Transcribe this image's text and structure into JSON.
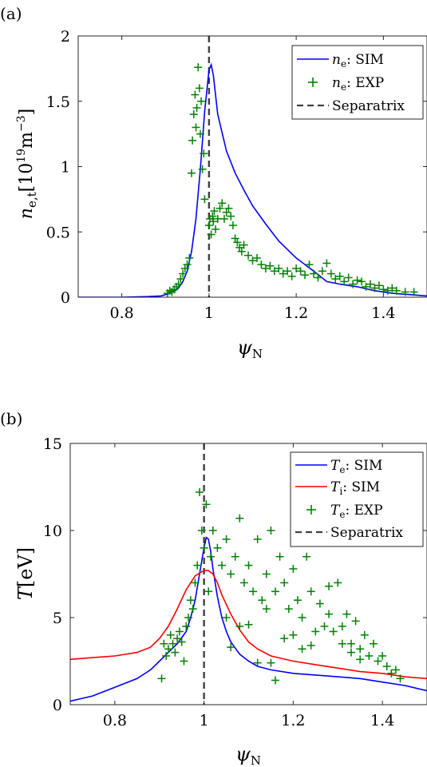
{
  "colors": {
    "sim_ne": "#0000ff",
    "sim_te": "#0000ff",
    "sim_ti": "#ff0000",
    "exp": "#008000",
    "separatrix": "#404040",
    "axes": "#262626"
  },
  "chart_data": [
    {
      "type": "line",
      "panel_label": "(a)",
      "xlabel": "ψN",
      "ylabel": "ne,t[10¹⁹m⁻³]",
      "xlim": [
        0.7,
        1.5
      ],
      "ylim": [
        0,
        2
      ],
      "xticks": [
        "0.8",
        "1",
        "1.2",
        "1.4"
      ],
      "xtick_values": [
        0.8,
        1.0,
        1.2,
        1.4
      ],
      "yticks": [
        "0",
        "0.5",
        "1",
        "1.5",
        "2"
      ],
      "ytick_values": [
        0,
        0.5,
        1.0,
        1.5,
        2.0
      ],
      "grid": false,
      "legend_position": "top-right",
      "legend": [
        "ne: SIM",
        "ne: EXP",
        "Separatrix"
      ],
      "separatrix_x": 1.0,
      "series": [
        {
          "name": "ne: SIM",
          "kind": "line",
          "x": [
            0.7,
            0.8,
            0.86,
            0.89,
            0.91,
            0.93,
            0.94,
            0.95,
            0.96,
            0.97,
            0.98,
            0.99,
            1.0,
            1.005,
            1.01,
            1.02,
            1.04,
            1.06,
            1.08,
            1.1,
            1.13,
            1.16,
            1.2,
            1.24,
            1.27,
            1.3,
            1.34,
            1.38,
            1.42,
            1.46,
            1.5
          ],
          "values": [
            0.0,
            0.0,
            0.005,
            0.01,
            0.03,
            0.07,
            0.12,
            0.2,
            0.35,
            0.6,
            0.98,
            1.42,
            1.74,
            1.78,
            1.7,
            1.4,
            1.12,
            0.95,
            0.82,
            0.7,
            0.56,
            0.43,
            0.3,
            0.2,
            0.12,
            0.1,
            0.08,
            0.05,
            0.03,
            0.02,
            0.01
          ]
        },
        {
          "name": "ne: EXP",
          "kind": "scatter",
          "x": [
            0.905,
            0.91,
            0.915,
            0.92,
            0.925,
            0.93,
            0.935,
            0.94,
            0.945,
            0.95,
            0.955,
            0.96,
            0.962,
            0.965,
            0.968,
            0.97,
            0.972,
            0.975,
            0.978,
            0.98,
            0.982,
            0.985,
            0.988,
            0.99,
            1.0,
            1.002,
            1.005,
            1.008,
            1.01,
            1.012,
            1.015,
            1.02,
            1.025,
            1.03,
            1.035,
            1.04,
            1.045,
            1.05,
            1.055,
            1.06,
            1.065,
            1.07,
            1.075,
            1.08,
            1.09,
            1.1,
            1.11,
            1.12,
            1.13,
            1.14,
            1.15,
            1.16,
            1.17,
            1.18,
            1.19,
            1.2,
            1.21,
            1.22,
            1.23,
            1.24,
            1.25,
            1.26,
            1.27,
            1.28,
            1.29,
            1.3,
            1.31,
            1.32,
            1.33,
            1.34,
            1.35,
            1.36,
            1.37,
            1.38,
            1.39,
            1.4,
            1.41,
            1.42,
            1.43,
            1.45,
            1.47
          ],
          "values": [
            0.03,
            0.05,
            0.04,
            0.06,
            0.08,
            0.1,
            0.14,
            0.18,
            0.22,
            0.25,
            0.3,
            0.95,
            1.2,
            1.4,
            1.55,
            1.3,
            1.45,
            1.76,
            1.6,
            1.25,
            1.5,
            0.98,
            1.1,
            0.75,
            0.55,
            0.6,
            0.48,
            0.62,
            0.58,
            0.66,
            0.52,
            0.6,
            0.68,
            0.72,
            0.6,
            0.65,
            0.68,
            0.62,
            0.55,
            0.45,
            0.42,
            0.38,
            0.35,
            0.4,
            0.32,
            0.28,
            0.3,
            0.25,
            0.22,
            0.24,
            0.2,
            0.22,
            0.18,
            0.2,
            0.16,
            0.22,
            0.2,
            0.17,
            0.25,
            0.18,
            0.15,
            0.2,
            0.26,
            0.18,
            0.14,
            0.16,
            0.12,
            0.15,
            0.1,
            0.13,
            0.12,
            0.08,
            0.1,
            0.07,
            0.09,
            0.06,
            0.05,
            0.07,
            0.05,
            0.04,
            0.04
          ]
        }
      ]
    },
    {
      "type": "line",
      "panel_label": "(b)",
      "xlabel": "ψN",
      "ylabel": "T[eV]",
      "xlim": [
        0.7,
        1.5
      ],
      "ylim": [
        0,
        15
      ],
      "xticks": [
        "0.8",
        "1",
        "1.2",
        "1.4"
      ],
      "xtick_values": [
        0.8,
        1.0,
        1.2,
        1.4
      ],
      "yticks": [
        "0",
        "5",
        "10",
        "15"
      ],
      "ytick_values": [
        0,
        5,
        10,
        15
      ],
      "grid": false,
      "legend_position": "top-right",
      "legend": [
        "Te: SIM",
        "Ti: SIM",
        "Te: EXP",
        "Separatrix"
      ],
      "separatrix_x": 1.0,
      "series": [
        {
          "name": "Te: SIM",
          "kind": "line",
          "x": [
            0.7,
            0.75,
            0.8,
            0.85,
            0.88,
            0.9,
            0.92,
            0.94,
            0.96,
            0.97,
            0.98,
            0.99,
            1.0,
            1.005,
            1.01,
            1.015,
            1.02,
            1.03,
            1.04,
            1.05,
            1.06,
            1.08,
            1.1,
            1.12,
            1.15,
            1.2,
            1.25,
            1.3,
            1.35,
            1.4,
            1.45,
            1.5
          ],
          "values": [
            0.2,
            0.5,
            1.0,
            1.5,
            2.0,
            2.5,
            3.0,
            3.5,
            4.2,
            5.0,
            6.0,
            7.5,
            9.0,
            9.6,
            9.5,
            8.8,
            7.8,
            6.2,
            5.0,
            4.2,
            3.6,
            2.9,
            2.5,
            2.2,
            2.0,
            1.8,
            1.7,
            1.6,
            1.5,
            1.3,
            1.1,
            0.8
          ]
        },
        {
          "name": "Ti: SIM",
          "kind": "line",
          "x": [
            0.7,
            0.75,
            0.8,
            0.85,
            0.88,
            0.9,
            0.92,
            0.94,
            0.96,
            0.98,
            1.0,
            1.01,
            1.02,
            1.03,
            1.04,
            1.06,
            1.08,
            1.1,
            1.12,
            1.15,
            1.2,
            1.25,
            1.3,
            1.35,
            1.4,
            1.45,
            1.5
          ],
          "values": [
            2.6,
            2.7,
            2.8,
            3.0,
            3.3,
            3.8,
            4.5,
            5.5,
            6.6,
            7.4,
            7.7,
            7.7,
            7.5,
            7.0,
            6.3,
            5.2,
            4.3,
            3.6,
            3.2,
            2.8,
            2.5,
            2.3,
            2.1,
            1.9,
            1.8,
            1.6,
            1.5
          ]
        },
        {
          "name": "Te: EXP",
          "kind": "scatter",
          "x": [
            0.905,
            0.91,
            0.915,
            0.92,
            0.925,
            0.93,
            0.935,
            0.94,
            0.945,
            0.95,
            0.955,
            0.96,
            0.965,
            0.97,
            0.975,
            0.98,
            0.985,
            0.99,
            0.995,
            1.0,
            1.005,
            1.01,
            1.015,
            1.02,
            1.03,
            1.04,
            1.05,
            1.06,
            1.07,
            1.08,
            1.09,
            1.1,
            1.11,
            1.12,
            1.13,
            1.14,
            1.15,
            1.16,
            1.17,
            1.18,
            1.19,
            1.2,
            1.21,
            1.22,
            1.23,
            1.24,
            1.25,
            1.26,
            1.27,
            1.28,
            1.29,
            1.3,
            1.31,
            1.32,
            1.33,
            1.34,
            1.35,
            1.36,
            1.37,
            1.38,
            1.39,
            1.4,
            1.41,
            1.42,
            1.43,
            1.44,
            1.12,
            1.15,
            1.16,
            1.06,
            1.08,
            1.14,
            1.2,
            1.22,
            1.25,
            1.28,
            1.31,
            1.33,
            1.35,
            1.05,
            1.1,
            1.18,
            1.24
          ],
          "values": [
            1.5,
            3.5,
            2.8,
            3.2,
            4.0,
            3.5,
            3.0,
            3.8,
            4.2,
            3.6,
            2.5,
            4.5,
            5.0,
            6.0,
            5.5,
            7.0,
            8.0,
            12.2,
            10.0,
            9.0,
            11.5,
            6.5,
            8.5,
            10.0,
            9.0,
            8.0,
            9.5,
            7.5,
            8.5,
            10.7,
            7.0,
            8.0,
            6.5,
            9.5,
            6.0,
            7.5,
            10.0,
            6.5,
            8.5,
            7.0,
            5.5,
            7.8,
            6.0,
            5.0,
            8.5,
            6.5,
            9.3,
            5.8,
            4.5,
            6.8,
            4.2,
            7.0,
            4.5,
            5.2,
            3.5,
            4.8,
            3.2,
            4.0,
            2.8,
            3.5,
            2.5,
            2.8,
            2.2,
            1.8,
            2.0,
            1.5,
            2.4,
            2.4,
            1.4,
            3.3,
            4.5,
            5.5,
            4.0,
            3.2,
            4.2,
            5.2,
            3.5,
            3.0,
            2.6,
            5.0,
            4.6,
            3.8,
            3.4
          ]
        }
      ]
    }
  ]
}
